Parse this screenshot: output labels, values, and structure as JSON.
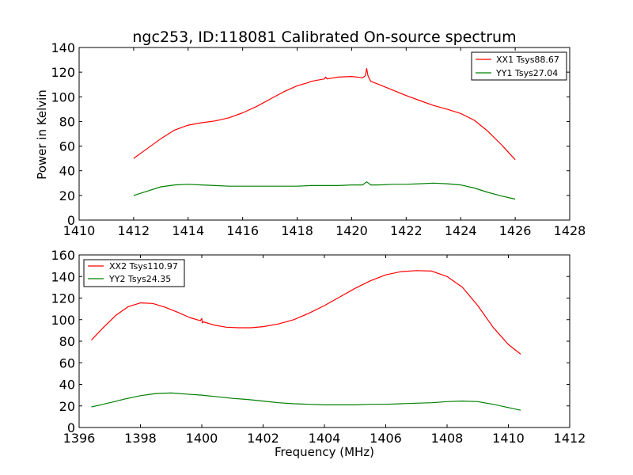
{
  "figure": {
    "title": "ngc253, ID:118081 Calibrated On-source spectrum",
    "ylabel": "Power in Kelvin",
    "xlabel": "Frequency (MHz)",
    "colors": {
      "red": "#ff0000",
      "green": "#008000"
    }
  },
  "chart_data": [
    {
      "type": "line",
      "title": "ngc253, ID:118081 Calibrated On-source spectrum",
      "xlabel": "",
      "ylabel": "Power in Kelvin",
      "xlim": [
        1410,
        1428
      ],
      "ylim": [
        0,
        140
      ],
      "xticks": [
        1410,
        1412,
        1414,
        1416,
        1418,
        1420,
        1422,
        1424,
        1426,
        1428
      ],
      "yticks": [
        0,
        20,
        40,
        60,
        80,
        100,
        120,
        140
      ],
      "grid": false,
      "legend": "top-right",
      "series": [
        {
          "name": "XX1 Tsys88.67",
          "color": "#ff0000",
          "x": [
            1412.0,
            1412.5,
            1413.0,
            1413.5,
            1414.0,
            1414.5,
            1415.0,
            1415.5,
            1416.0,
            1416.5,
            1417.0,
            1417.5,
            1418.0,
            1418.4,
            1418.5,
            1419.0,
            1419.05,
            1419.1,
            1419.5,
            1420.0,
            1420.4,
            1420.5,
            1420.55,
            1420.6,
            1420.7,
            1421.0,
            1421.5,
            1422.0,
            1422.5,
            1423.0,
            1423.5,
            1424.0,
            1424.5,
            1425.0,
            1425.5,
            1426.0
          ],
          "y": [
            50,
            58,
            66,
            73,
            77,
            79,
            80.5,
            83,
            87,
            92,
            98,
            104,
            109,
            111.5,
            112.5,
            114.5,
            116,
            114.5,
            116,
            116.5,
            115.5,
            117,
            123,
            117,
            112.5,
            110,
            105.5,
            101,
            97,
            93,
            90,
            86.5,
            81,
            72,
            61,
            49
          ]
        },
        {
          "name": "YY1 Tsys27.04",
          "color": "#008000",
          "x": [
            1412.0,
            1412.5,
            1413.0,
            1413.5,
            1414.0,
            1414.5,
            1415.0,
            1415.5,
            1416.0,
            1416.5,
            1417.0,
            1417.5,
            1418.0,
            1418.5,
            1419.0,
            1419.5,
            1420.0,
            1420.4,
            1420.55,
            1420.7,
            1421.0,
            1421.5,
            1422.0,
            1422.5,
            1423.0,
            1423.5,
            1424.0,
            1424.5,
            1425.0,
            1425.5,
            1426.0
          ],
          "y": [
            20,
            23.5,
            27,
            28.5,
            29,
            28.5,
            28,
            27.5,
            27.5,
            27.5,
            27.5,
            27.5,
            27.5,
            28,
            28,
            28,
            28.5,
            28.5,
            31,
            28.5,
            28.5,
            29,
            29,
            29.5,
            30,
            29.5,
            28.5,
            26,
            22.5,
            19.5,
            17
          ]
        }
      ]
    },
    {
      "type": "line",
      "title": "",
      "xlabel": "Frequency (MHz)",
      "ylabel": "",
      "xlim": [
        1396,
        1412
      ],
      "ylim": [
        0,
        160
      ],
      "xticks": [
        1396,
        1398,
        1400,
        1402,
        1404,
        1406,
        1408,
        1410,
        1412
      ],
      "yticks": [
        0,
        20,
        40,
        60,
        80,
        100,
        120,
        140,
        160
      ],
      "grid": false,
      "legend": "top-left",
      "series": [
        {
          "name": "XX2 Tsys110.97",
          "color": "#ff0000",
          "x": [
            1396.4,
            1396.8,
            1397.2,
            1397.6,
            1398.0,
            1398.4,
            1398.8,
            1399.2,
            1399.6,
            1399.95,
            1400.0,
            1400.02,
            1400.05,
            1400.4,
            1400.8,
            1401.2,
            1401.6,
            1402.0,
            1402.5,
            1403.0,
            1403.5,
            1404.0,
            1404.5,
            1405.0,
            1405.5,
            1406.0,
            1406.5,
            1407.0,
            1407.5,
            1408.0,
            1408.5,
            1409.0,
            1409.5,
            1410.0,
            1410.4
          ],
          "y": [
            81,
            93,
            104,
            112,
            115.5,
            115,
            111.5,
            107,
            102,
            99,
            101,
            97,
            98,
            95,
            93,
            92.5,
            92.5,
            93.5,
            96,
            100,
            106,
            113,
            121,
            129,
            136,
            141.5,
            144.5,
            145.5,
            145,
            140,
            130,
            113,
            93,
            77,
            68
          ]
        },
        {
          "name": "YY2 Tsys24.35",
          "color": "#008000",
          "x": [
            1396.4,
            1397.0,
            1397.5,
            1398.0,
            1398.5,
            1399.0,
            1399.5,
            1400.0,
            1400.5,
            1401.0,
            1401.5,
            1402.0,
            1402.5,
            1403.0,
            1403.5,
            1404.0,
            1404.5,
            1405.0,
            1405.5,
            1406.0,
            1406.5,
            1407.0,
            1407.5,
            1408.0,
            1408.5,
            1409.0,
            1409.5,
            1410.0,
            1410.4
          ],
          "y": [
            19,
            23,
            26.5,
            29.5,
            31.5,
            32,
            31,
            30,
            28.5,
            27,
            26,
            24.5,
            23,
            22,
            21.5,
            21,
            21,
            21,
            21.5,
            21.5,
            22,
            22.5,
            23,
            24,
            24.5,
            24,
            21.5,
            18.5,
            16
          ]
        }
      ]
    }
  ]
}
